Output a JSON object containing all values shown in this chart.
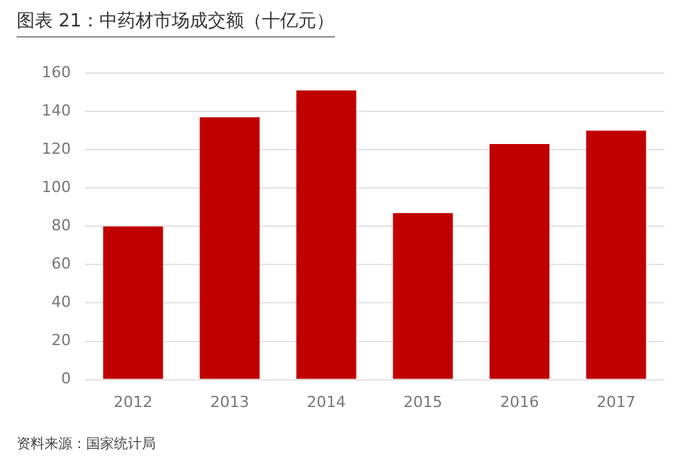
{
  "chart_data": {
    "type": "bar",
    "title": "图表 21：中药材市场成交额（十亿元）",
    "categories": [
      "2012",
      "2013",
      "2014",
      "2015",
      "2016",
      "2017"
    ],
    "values": [
      80,
      137,
      151,
      87,
      123,
      130
    ],
    "color": "#c00000",
    "ylim": [
      0,
      160
    ],
    "yticks": [
      0,
      20,
      40,
      60,
      80,
      100,
      120,
      140,
      160
    ],
    "grid": "y",
    "legend": false,
    "annotations": [
      "资料来源：国家统计局"
    ]
  }
}
